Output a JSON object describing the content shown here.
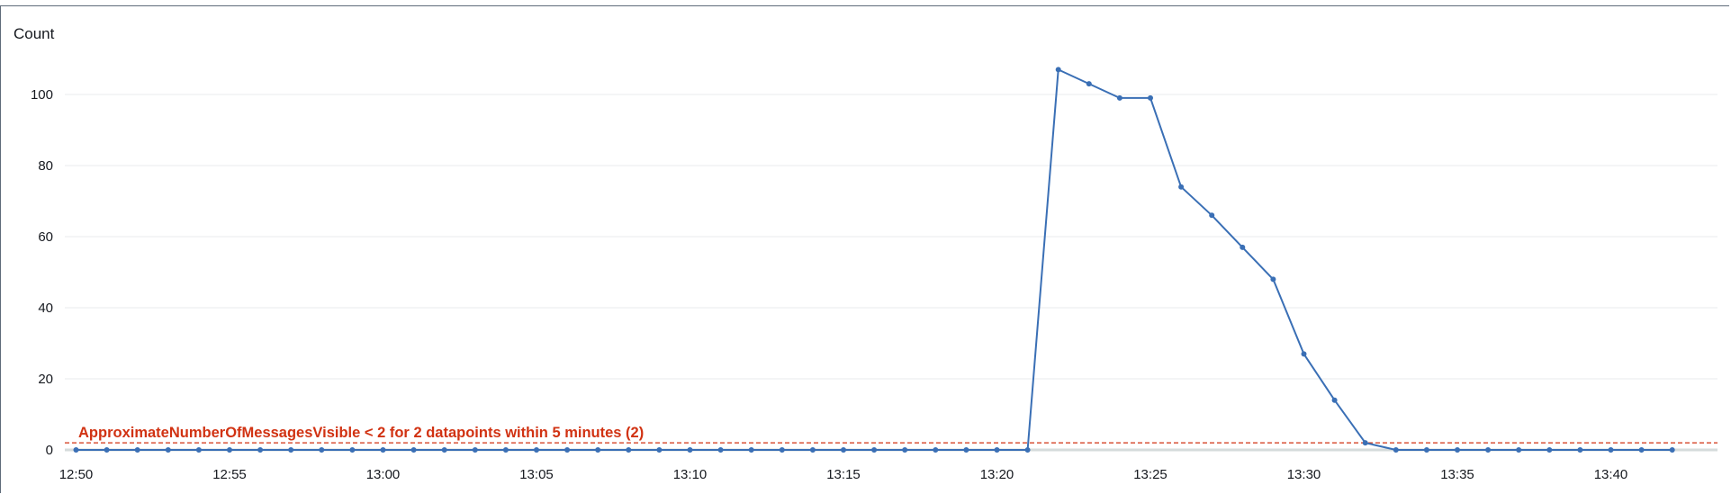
{
  "chart_data": {
    "type": "line",
    "ylabel": "Count",
    "ylim": [
      0,
      110
    ],
    "yticks": [
      0,
      20,
      40,
      60,
      80,
      100
    ],
    "xlim": [
      "12:50",
      "13:42"
    ],
    "xticks": [
      "12:50",
      "12:55",
      "13:00",
      "13:05",
      "13:10",
      "13:15",
      "13:20",
      "13:25",
      "13:30",
      "13:35",
      "13:40"
    ],
    "grid": true,
    "series": [
      {
        "name": "ApproximateNumberOfMessagesVisible",
        "color": "#3a6fb5",
        "x": [
          "12:50",
          "12:51",
          "12:52",
          "12:53",
          "12:54",
          "12:55",
          "12:56",
          "12:57",
          "12:58",
          "12:59",
          "13:00",
          "13:01",
          "13:02",
          "13:03",
          "13:04",
          "13:05",
          "13:06",
          "13:07",
          "13:08",
          "13:09",
          "13:10",
          "13:11",
          "13:12",
          "13:13",
          "13:14",
          "13:15",
          "13:16",
          "13:17",
          "13:18",
          "13:19",
          "13:20",
          "13:21",
          "13:22",
          "13:23",
          "13:24",
          "13:25",
          "13:26",
          "13:27",
          "13:28",
          "13:29",
          "13:30",
          "13:31",
          "13:32",
          "13:33",
          "13:34",
          "13:35",
          "13:36",
          "13:37",
          "13:38",
          "13:39",
          "13:40",
          "13:41",
          "13:42"
        ],
        "values": [
          0,
          0,
          0,
          0,
          0,
          0,
          0,
          0,
          0,
          0,
          0,
          0,
          0,
          0,
          0,
          0,
          0,
          0,
          0,
          0,
          0,
          0,
          0,
          0,
          0,
          0,
          0,
          0,
          0,
          0,
          0,
          0,
          107,
          103,
          99,
          99,
          74,
          66,
          57,
          48,
          27,
          14,
          2,
          0,
          0,
          0,
          0,
          0,
          0,
          0,
          0,
          0,
          0
        ]
      }
    ],
    "threshold": {
      "value": 2,
      "label": "ApproximateNumberOfMessagesVisible < 2 for 2 datapoints within 5 minutes (2)",
      "color": "#d13212"
    }
  }
}
